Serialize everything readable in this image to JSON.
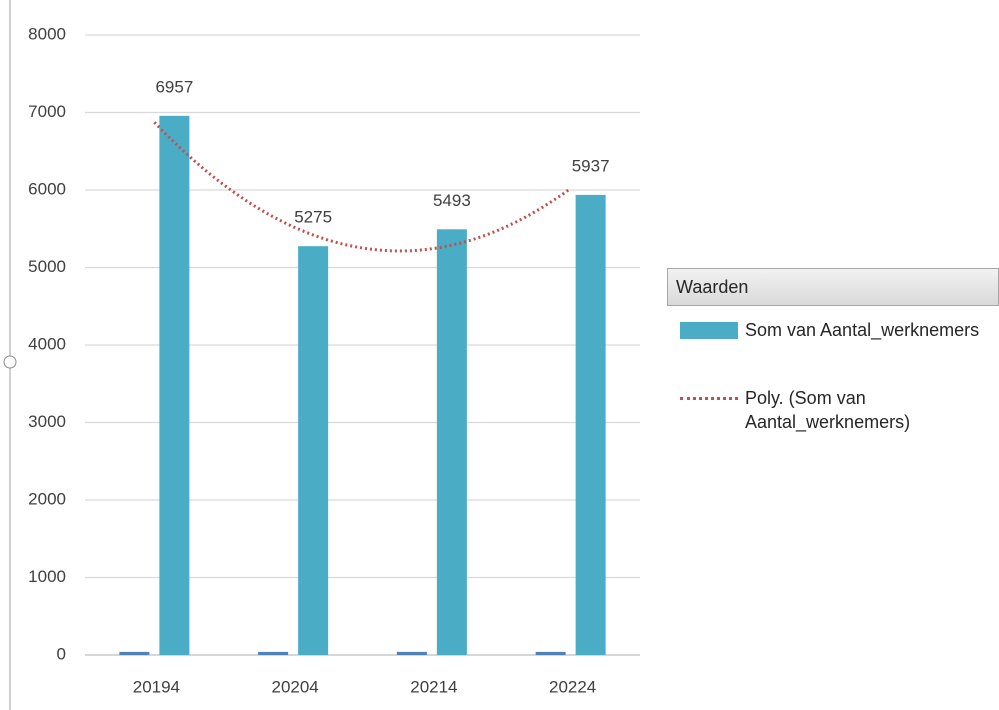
{
  "chart_data": {
    "type": "bar",
    "categories": [
      "20194",
      "20204",
      "20214",
      "20224"
    ],
    "series": [
      {
        "name": "Som van Aantal_werknemers",
        "color": "#4bacc6",
        "values": [
          6957,
          5275,
          5493,
          5937
        ]
      },
      {
        "color": "#4f81bd",
        "values": [
          40,
          40,
          40,
          40
        ]
      }
    ],
    "trendline": {
      "name": "Poly. (Som van Aantal_werknemers)",
      "kind": "polynomial",
      "order": 2,
      "color": "#c0504d"
    },
    "legend_title": "Waarden",
    "ylim": [
      0,
      8000
    ],
    "yticks": [
      0,
      1000,
      2000,
      3000,
      4000,
      5000,
      6000,
      7000,
      8000
    ],
    "grid": true,
    "legend": "right"
  }
}
